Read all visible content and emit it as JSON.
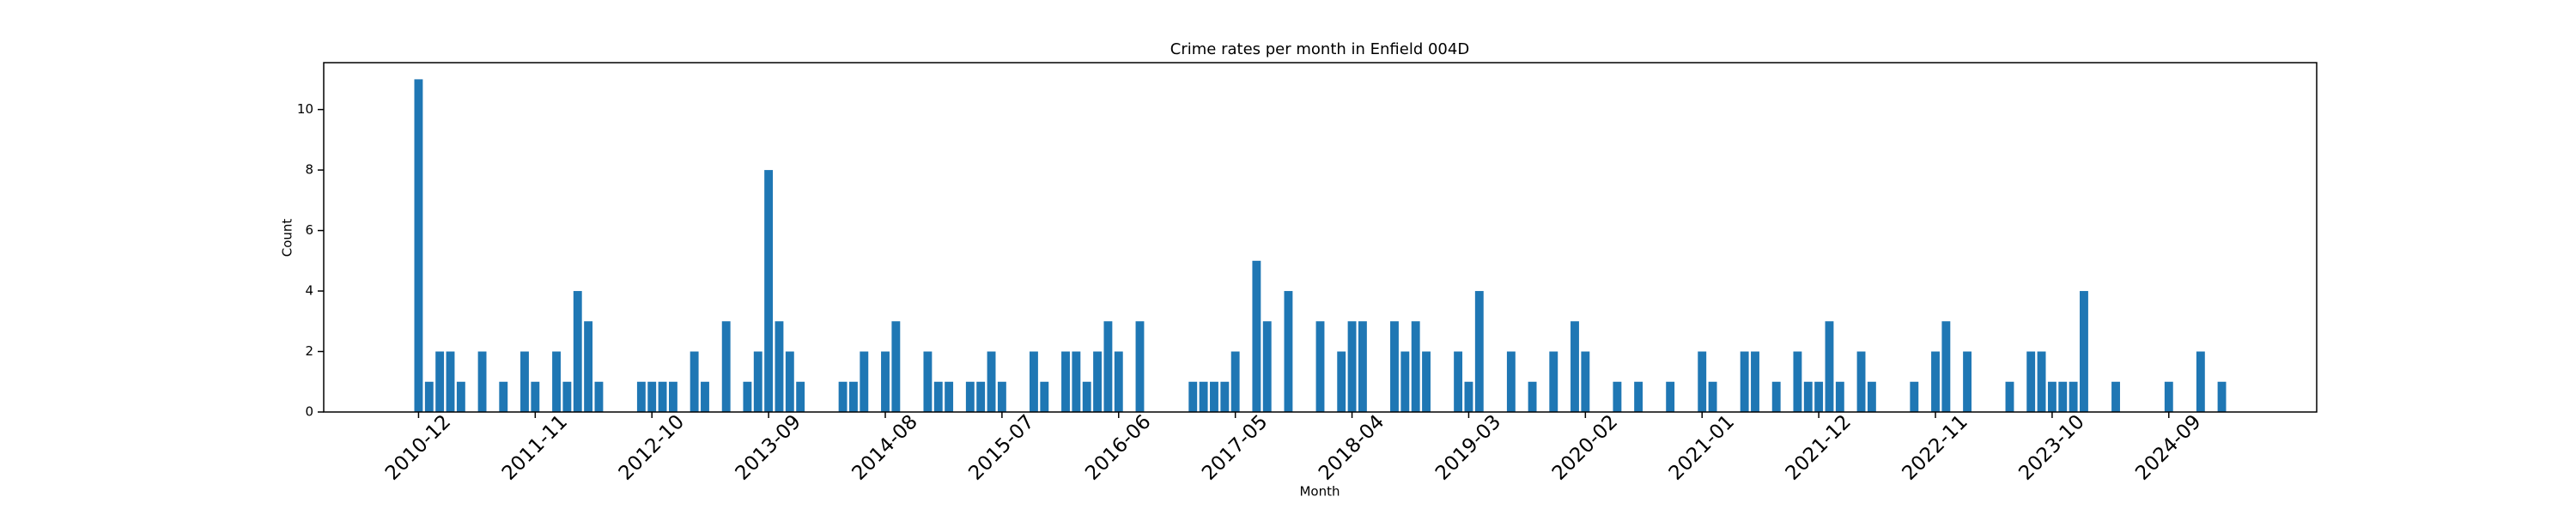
{
  "chart_data": {
    "type": "bar",
    "title": "Crime rates per month in Enfield 004D",
    "xlabel": "Month",
    "ylabel": "Count",
    "color": "#1f77b4",
    "categories": [
      "2010-12",
      null,
      null,
      null,
      null,
      null,
      null,
      null,
      null,
      null,
      null,
      "2011-11",
      null,
      null,
      null,
      null,
      null,
      null,
      null,
      null,
      null,
      null,
      "2012-10",
      null,
      null,
      null,
      null,
      null,
      null,
      null,
      null,
      null,
      null,
      "2013-09",
      null,
      null,
      null,
      null,
      null,
      null,
      null,
      null,
      null,
      null,
      "2014-08",
      null,
      null,
      null,
      null,
      null,
      null,
      null,
      null,
      null,
      null,
      "2015-07",
      null,
      null,
      null,
      null,
      null,
      null,
      null,
      null,
      null,
      null,
      "2016-06",
      null,
      null,
      null,
      null,
      null,
      null,
      null,
      null,
      null,
      null,
      "2017-05",
      null,
      null,
      null,
      null,
      null,
      null,
      null,
      null,
      null,
      null,
      "2018-04",
      null,
      null,
      null,
      null,
      null,
      null,
      null,
      null,
      null,
      null,
      "2019-03",
      null,
      null,
      null,
      null,
      null,
      null,
      null,
      null,
      null,
      null,
      "2020-02",
      null,
      null,
      null,
      null,
      null,
      null,
      null,
      null,
      null,
      null,
      "2021-01",
      null,
      null,
      null,
      null,
      null,
      null,
      null,
      null,
      null,
      null,
      "2021-12",
      null,
      null,
      null,
      null,
      null,
      null,
      null,
      null,
      null,
      null,
      "2022-11",
      null,
      null,
      null,
      null,
      null,
      null,
      null,
      null,
      null,
      null,
      "2023-10",
      null,
      null,
      null,
      null,
      null,
      null,
      null,
      null,
      null,
      null,
      "2024-09",
      null,
      null,
      null,
      null,
      null
    ],
    "values": [
      11,
      1,
      2,
      2,
      1,
      0,
      2,
      0,
      1,
      0,
      2,
      1,
      0,
      2,
      1,
      4,
      3,
      1,
      0,
      0,
      0,
      1,
      1,
      1,
      1,
      0,
      2,
      1,
      0,
      3,
      0,
      1,
      2,
      8,
      3,
      2,
      1,
      0,
      0,
      0,
      1,
      1,
      2,
      0,
      2,
      3,
      0,
      0,
      2,
      1,
      1,
      0,
      1,
      1,
      2,
      1,
      0,
      0,
      2,
      1,
      0,
      2,
      2,
      1,
      2,
      3,
      2,
      0,
      3,
      0,
      0,
      0,
      0,
      1,
      1,
      1,
      1,
      2,
      0,
      5,
      3,
      0,
      4,
      0,
      0,
      3,
      0,
      2,
      3,
      3,
      0,
      0,
      3,
      2,
      3,
      2,
      0,
      0,
      2,
      1,
      4,
      0,
      0,
      2,
      0,
      1,
      0,
      2,
      0,
      3,
      2,
      0,
      0,
      1,
      0,
      1,
      0,
      0,
      1,
      0,
      0,
      2,
      1,
      0,
      0,
      2,
      2,
      0,
      1,
      0,
      2,
      1,
      1,
      3,
      1,
      0,
      2,
      1,
      0,
      0,
      0,
      1,
      0,
      2,
      3,
      0,
      2,
      0,
      0,
      0,
      1,
      0,
      2,
      2,
      1,
      1,
      1,
      4,
      0,
      0,
      1,
      0,
      0,
      0,
      0,
      1,
      0,
      0,
      2,
      0,
      1
    ],
    "ylim": [
      0,
      11.55
    ],
    "yticks": [
      0,
      2,
      4,
      6,
      8,
      10
    ]
  }
}
